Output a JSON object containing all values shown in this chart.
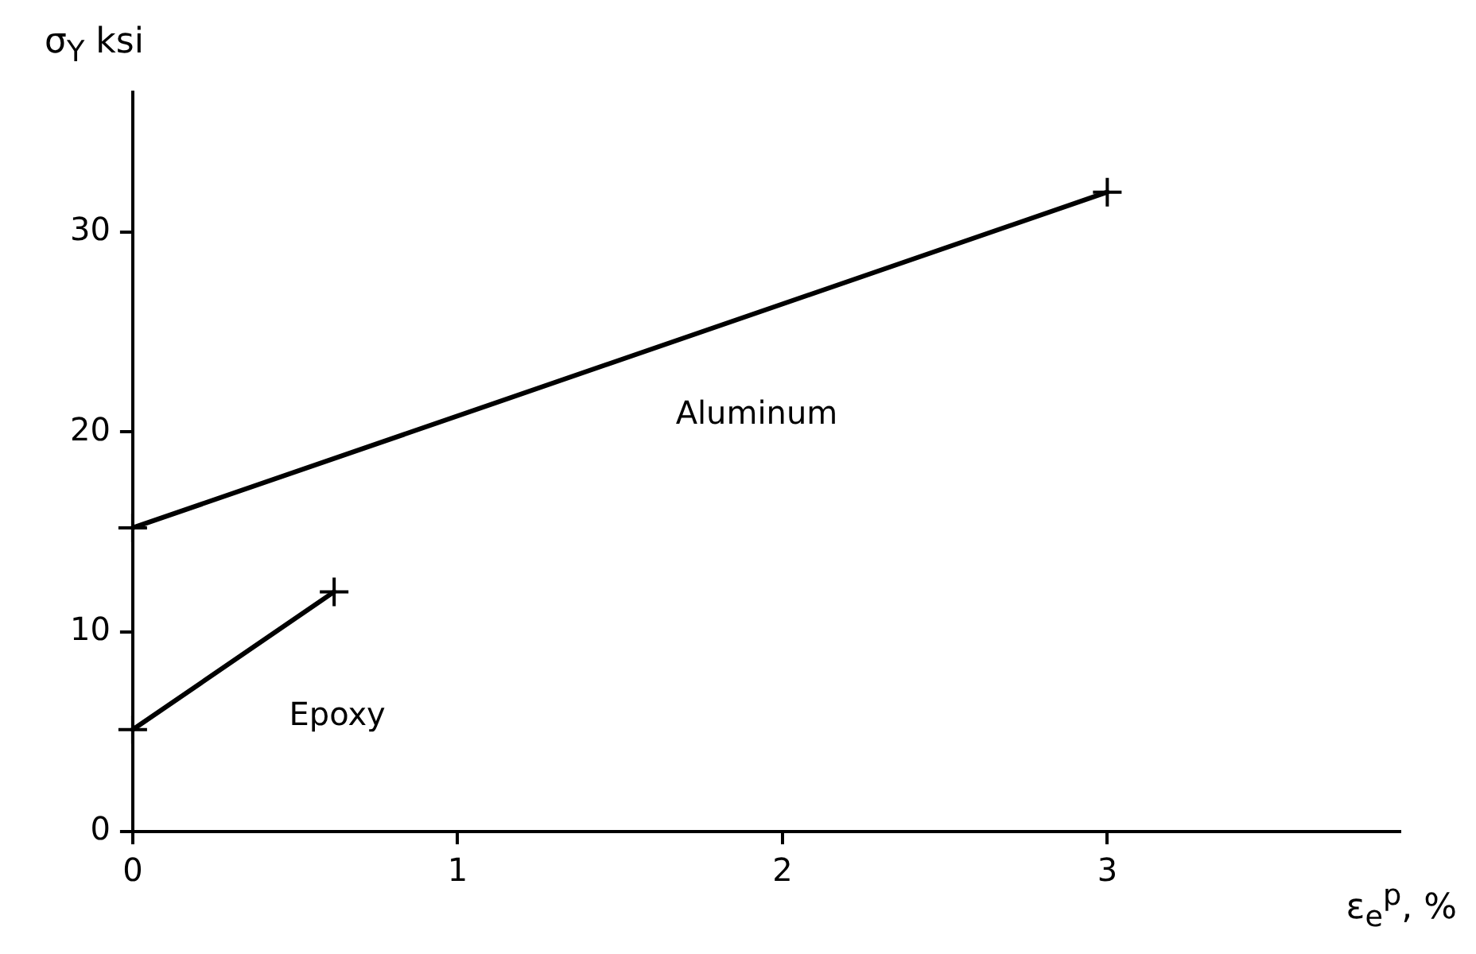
{
  "chart_data": {
    "type": "line",
    "xlabel": "ε$_{e}$$^{p}$, %",
    "ylabel": "σ$_{Y}$ ksi",
    "series": [
      {
        "name": "Aluminum",
        "color": "#000000",
        "x": [
          0,
          3.0
        ],
        "values": [
          15.2,
          32
        ]
      },
      {
        "name": "Epoxy",
        "color": "#000000",
        "x": [
          0,
          0.62
        ],
        "values": [
          5.1,
          12
        ]
      }
    ],
    "xlim": [
      0,
      3.9
    ],
    "ylim": [
      0,
      37
    ],
    "xticks": [
      0,
      1,
      2,
      3
    ],
    "yticks": [
      0,
      10,
      20,
      30
    ],
    "grid": false,
    "legend": false,
    "marker": "cross",
    "line_style": "solid"
  }
}
